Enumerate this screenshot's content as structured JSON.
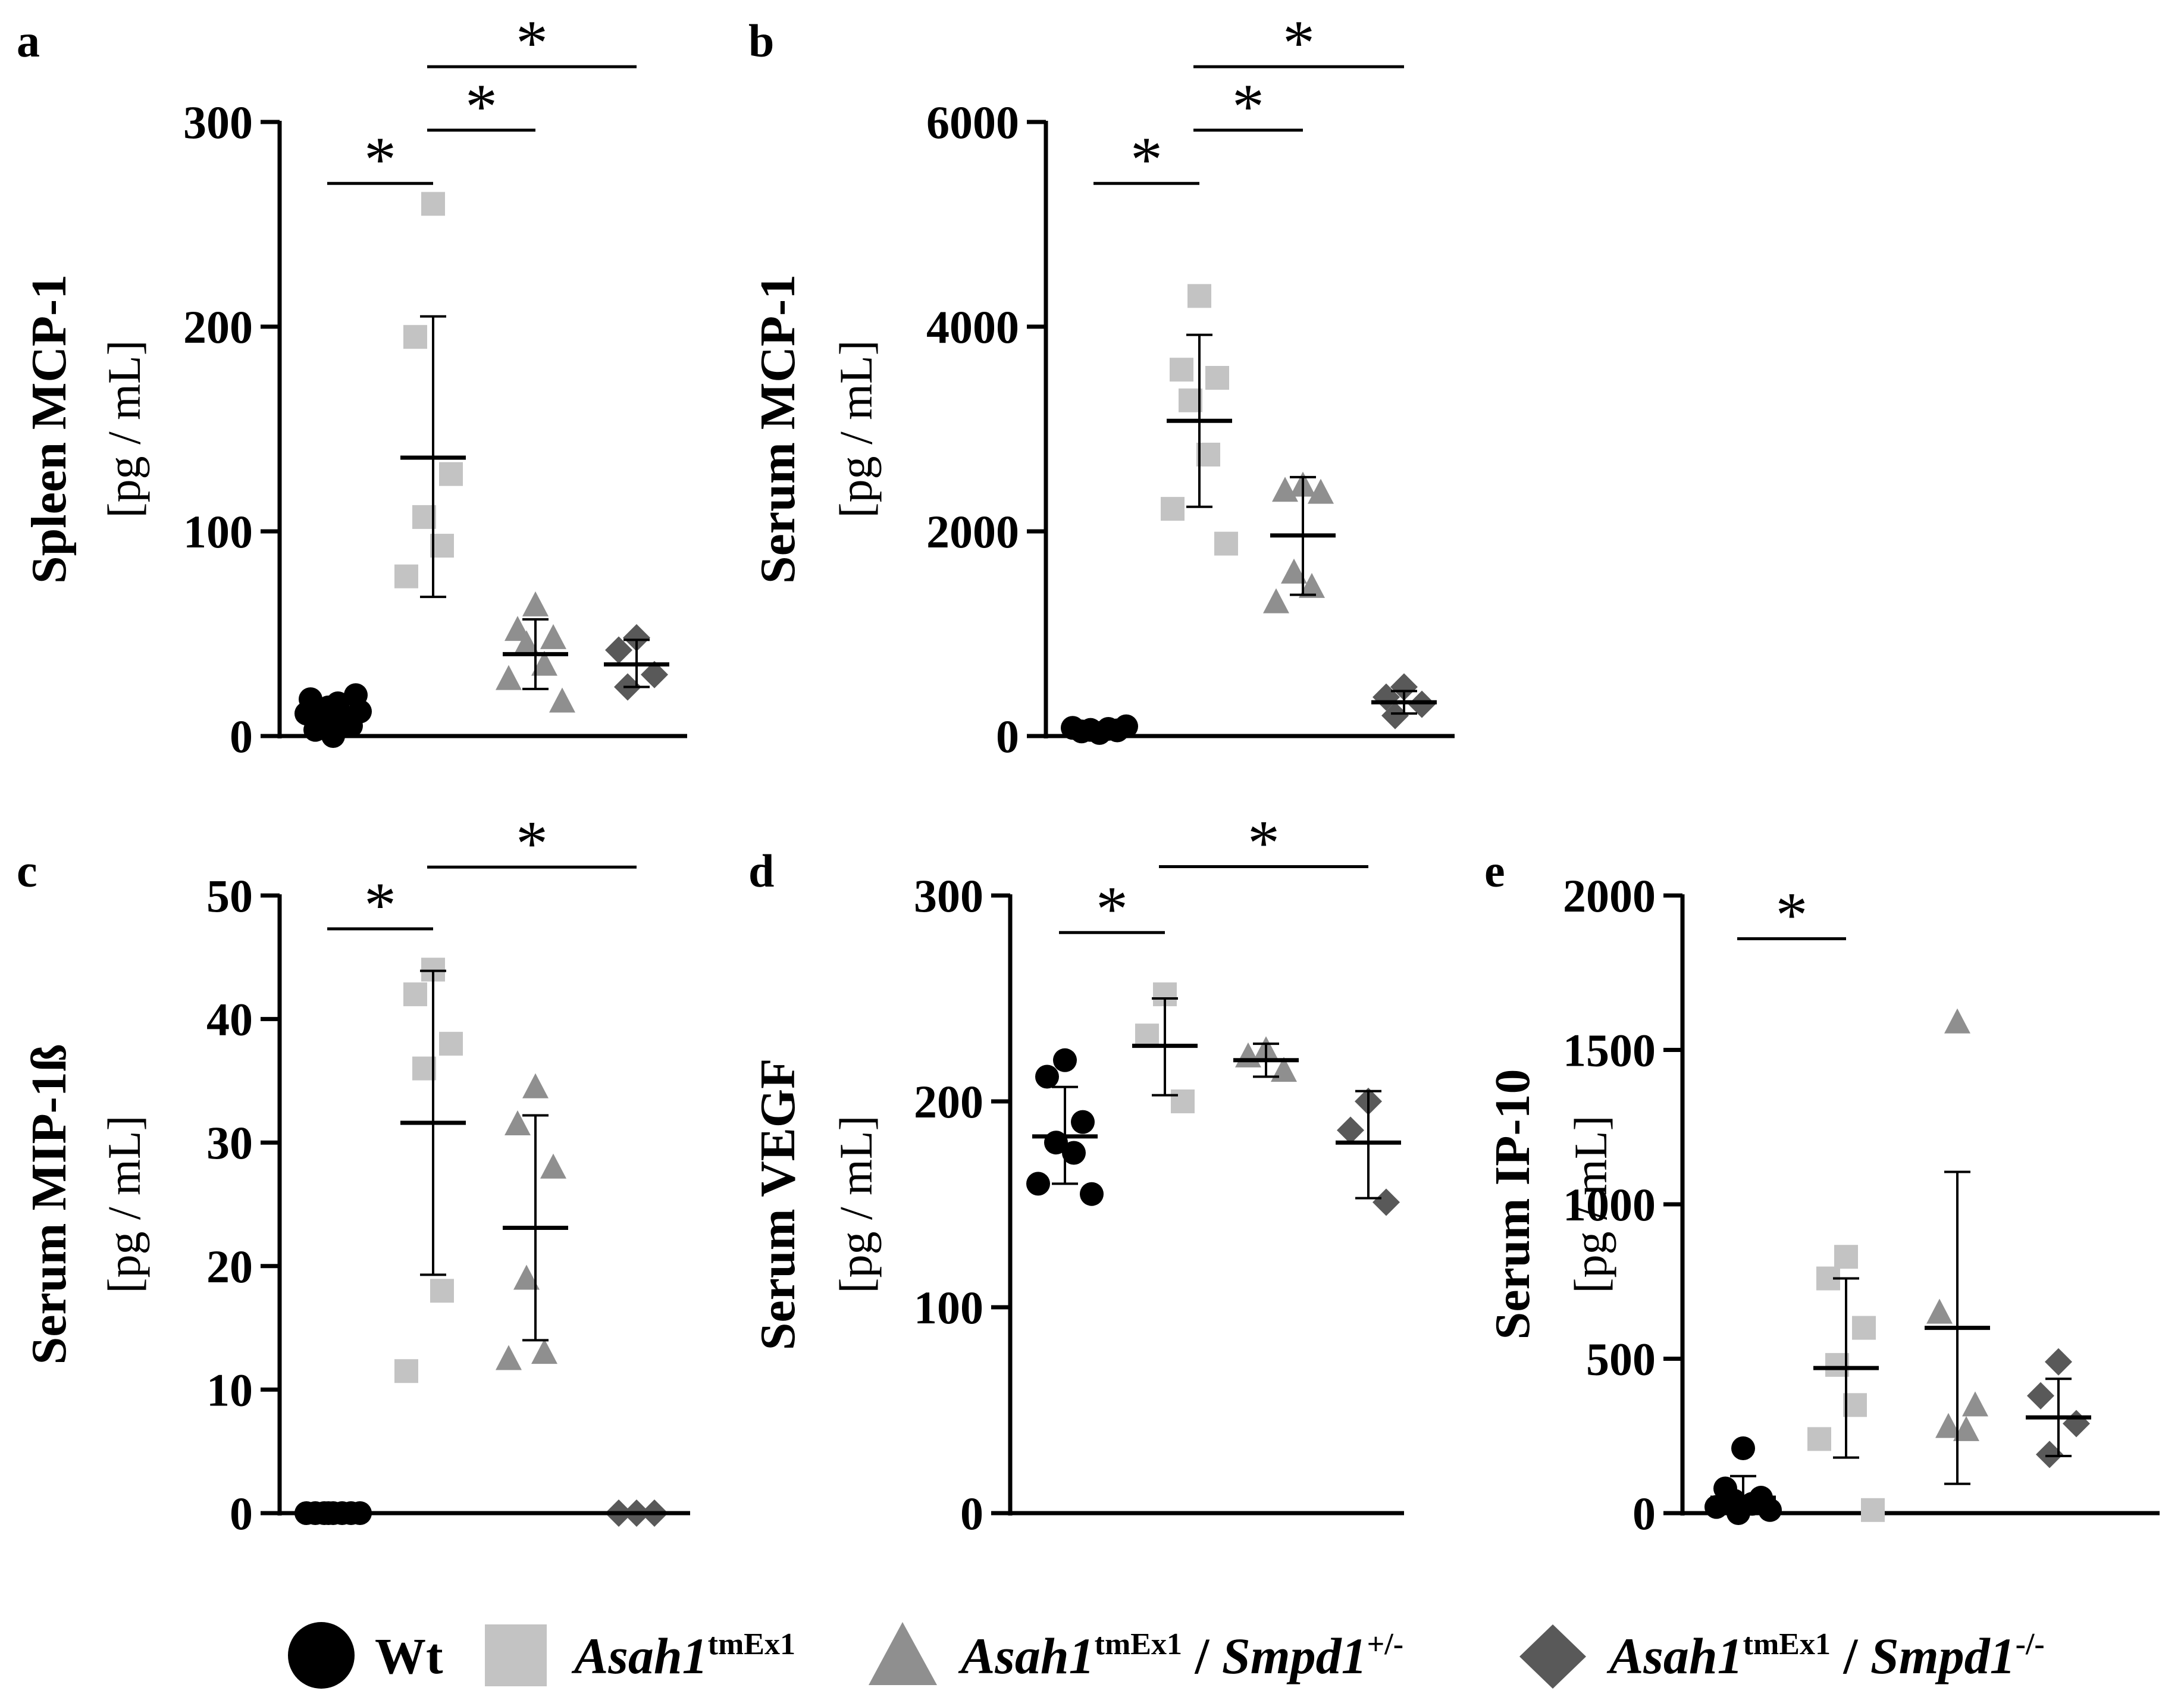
{
  "chart_data": [
    {
      "panel": "a",
      "type": "scatter",
      "ylabel_main": "Spleen MCP-1",
      "ylabel_unit": "[pg / mL]",
      "ylim": [
        0,
        300
      ],
      "yticks": [
        0,
        100,
        200,
        300
      ],
      "groups": [
        {
          "group": "Wt",
          "values": [
            0,
            3,
            5,
            7,
            9,
            11,
            12,
            14,
            16,
            18,
            20
          ],
          "mean": 10,
          "sd_low": 5,
          "sd_high": 15
        },
        {
          "group": "Asah1 tmEx1",
          "values": [
            260,
            195,
            128,
            107,
            93,
            78
          ],
          "mean": 136,
          "sd_low": 68,
          "sd_high": 205
        },
        {
          "group": "Asah1 tmEx1 / Smpd1 +/-",
          "values": [
            64,
            52,
            48,
            45,
            35,
            28,
            17
          ],
          "mean": 40,
          "sd_low": 23,
          "sd_high": 57
        },
        {
          "group": "Asah1 tmEx1 / Smpd1 -/-",
          "values": [
            48,
            42,
            30,
            24
          ],
          "mean": 35,
          "sd_low": 24,
          "sd_high": 47
        }
      ],
      "brackets": [
        {
          "from": 0,
          "to": 1,
          "y": 270,
          "label": "*"
        },
        {
          "from": 1,
          "to": 2,
          "y": 296,
          "label": "*"
        },
        {
          "from": 1,
          "to": 3,
          "y": 327,
          "label": "*"
        }
      ]
    },
    {
      "panel": "b",
      "type": "scatter",
      "ylabel_main": "Serum MCP-1",
      "ylabel_unit": "[pg / mL]",
      "ylim": [
        0,
        6000
      ],
      "yticks": [
        0,
        2000,
        4000,
        6000
      ],
      "groups": [
        {
          "group": "Wt",
          "values": [
            30,
            45,
            55,
            60,
            70,
            80,
            95
          ],
          "mean": 62,
          "sd_low": 40,
          "sd_high": 85
        },
        {
          "group": "Asah1 tmEx1",
          "values": [
            4300,
            3580,
            3500,
            3280,
            2750,
            2220,
            1880
          ],
          "mean": 3080,
          "sd_low": 2240,
          "sd_high": 3920
        },
        {
          "group": "Asah1 tmEx1 / Smpd1 +/-",
          "values": [
            2450,
            2400,
            2380,
            1600,
            1460,
            1310
          ],
          "mean": 1960,
          "sd_low": 1380,
          "sd_high": 2530
        },
        {
          "group": "Asah1 tmEx1 / Smpd1 -/-",
          "values": [
            480,
            380,
            310,
            200
          ],
          "mean": 330,
          "sd_low": 220,
          "sd_high": 440
        }
      ],
      "brackets": [
        {
          "from": 0,
          "to": 1,
          "y": 5400,
          "label": "*"
        },
        {
          "from": 1,
          "to": 2,
          "y": 5920,
          "label": "*"
        },
        {
          "from": 1,
          "to": 3,
          "y": 6540,
          "label": "*"
        }
      ]
    },
    {
      "panel": "c",
      "type": "scatter",
      "ylabel_main": "Serum MIP-1ß",
      "ylabel_unit": "[pg / mL]",
      "ylim": [
        0,
        50
      ],
      "yticks": [
        0,
        10,
        20,
        30,
        40,
        50
      ],
      "groups": [
        {
          "group": "Wt",
          "values": [
            0,
            0,
            0,
            0,
            0,
            0,
            0,
            0
          ],
          "mean": 0,
          "sd_low": 0,
          "sd_high": 0
        },
        {
          "group": "Asah1 tmEx1",
          "values": [
            44,
            42,
            38,
            36,
            18,
            11.5
          ],
          "mean": 31.6,
          "sd_low": 19.3,
          "sd_high": 43.9
        },
        {
          "group": "Asah1 tmEx1 / Smpd1 +/-",
          "values": [
            34.5,
            31.5,
            28,
            19,
            13,
            12.5
          ],
          "mean": 23.1,
          "sd_low": 14,
          "sd_high": 32.2
        },
        {
          "group": "Asah1 tmEx1 / Smpd1 -/-",
          "values": [
            0,
            0,
            0
          ],
          "mean": 0,
          "sd_low": 0,
          "sd_high": 0
        }
      ],
      "brackets": [
        {
          "from": 0,
          "to": 1,
          "y": 47.3,
          "label": "*"
        },
        {
          "from": 1,
          "to": 3,
          "y": 52.3,
          "label": "*"
        }
      ]
    },
    {
      "panel": "d",
      "type": "scatter",
      "ylabel_main": "Serum VEGF",
      "ylabel_unit": "[pg / mL]",
      "ylim": [
        0,
        300
      ],
      "yticks": [
        0,
        100,
        200,
        300
      ],
      "groups": [
        {
          "group": "Wt",
          "values": [
            220,
            212,
            190,
            180,
            175,
            160,
            155
          ],
          "mean": 183,
          "sd_low": 160,
          "sd_high": 207
        },
        {
          "group": "Asah1 tmEx1",
          "values": [
            252,
            232,
            200
          ],
          "mean": 227,
          "sd_low": 203,
          "sd_high": 250
        },
        {
          "group": "Asah1 tmEx1 / Smpd1 +/-",
          "values": [
            225,
            222,
            215
          ],
          "mean": 220,
          "sd_low": 212,
          "sd_high": 228
        },
        {
          "group": "Asah1 tmEx1 / Smpd1 -/-",
          "values": [
            200,
            186,
            151
          ],
          "mean": 180,
          "sd_low": 153,
          "sd_high": 205
        }
      ],
      "brackets": [
        {
          "from": 0,
          "to": 1,
          "y": 282,
          "label": "*"
        },
        {
          "from": 1,
          "to": 3,
          "y": 314,
          "label": "*"
        }
      ]
    },
    {
      "panel": "e",
      "type": "scatter",
      "ylabel_main": "Serum IP-10",
      "ylabel_unit": "[pg / mL]",
      "ylim": [
        0,
        2000
      ],
      "yticks": [
        0,
        500,
        1000,
        1500,
        2000
      ],
      "groups": [
        {
          "group": "Wt",
          "values": [
            210,
            80,
            50,
            40,
            30,
            20,
            10,
            0
          ],
          "mean": 50,
          "sd_low": 0,
          "sd_high": 120
        },
        {
          "group": "Asah1 tmEx1",
          "values": [
            830,
            760,
            600,
            480,
            350,
            240,
            10
          ],
          "mean": 470,
          "sd_low": 180,
          "sd_high": 760
        },
        {
          "group": "Asah1 tmEx1 / Smpd1 +/-",
          "values": [
            1590,
            650,
            350,
            280,
            270
          ],
          "mean": 600,
          "sd_low": 95,
          "sd_high": 1105
        },
        {
          "group": "Asah1 tmEx1 / Smpd1 -/-",
          "values": [
            490,
            380,
            290,
            190
          ],
          "mean": 310,
          "sd_low": 185,
          "sd_high": 435
        }
      ],
      "brackets": [
        {
          "from": 0,
          "to": 1,
          "y": 1860,
          "label": "*"
        }
      ]
    }
  ],
  "legend": {
    "wt": "Wt",
    "g1_name": "Asah1",
    "g1_sup": "tmEx1",
    "g2_name": "Asah1",
    "g2_sup": "tmEx1",
    "g2_sep": " / ",
    "g2_name2": "Smpd1",
    "g2_sup2": "+/-",
    "g3_name": "Asah1",
    "g3_sup": "tmEx1",
    "g3_sep": " / ",
    "g3_name2": "Smpd1",
    "g3_sup2": "-/-"
  },
  "colors": {
    "wt": "#000000",
    "asah1": "#c3c3c3",
    "het": "#8f8f8f",
    "ko": "#595959",
    "axis": "#000000"
  }
}
